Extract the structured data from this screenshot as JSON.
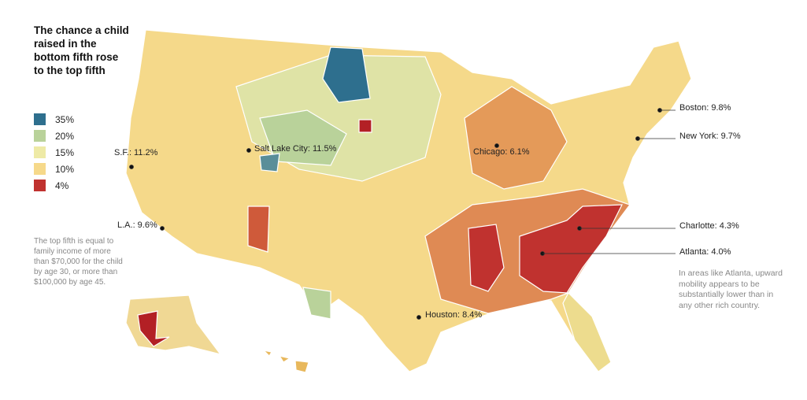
{
  "legend": {
    "title": "The chance a child raised in the bottom fifth rose to the top fifth",
    "items": [
      {
        "label": "35%",
        "color": "#2e6f8e"
      },
      {
        "label": "20%",
        "color": "#b9d29a"
      },
      {
        "label": "15%",
        "color": "#eeeaa6"
      },
      {
        "label": "10%",
        "color": "#f6d98a"
      },
      {
        "label": "4%",
        "color": "#c0322f"
      }
    ]
  },
  "note": "The top fifth is equal to family income of more than $70,000 for the child by age 30, or more than $100,000 by age 45.",
  "cities": [
    {
      "label": "S.F.: 11.2%"
    },
    {
      "label": "L.A.: 9.6%"
    },
    {
      "label": "Salt Lake City: 11.5%"
    },
    {
      "label": "Chicago: 6.1%"
    },
    {
      "label": "Boston: 9.8%"
    },
    {
      "label": "New York: 9.7%"
    },
    {
      "label": "Charlotte: 4.3%"
    },
    {
      "label": "Atlanta: 4.0%"
    },
    {
      "label": "Houston: 8.4%"
    }
  ],
  "annotation": "In areas like Atlanta, upward mobility appears to be substantially lower than in any other rich country."
}
